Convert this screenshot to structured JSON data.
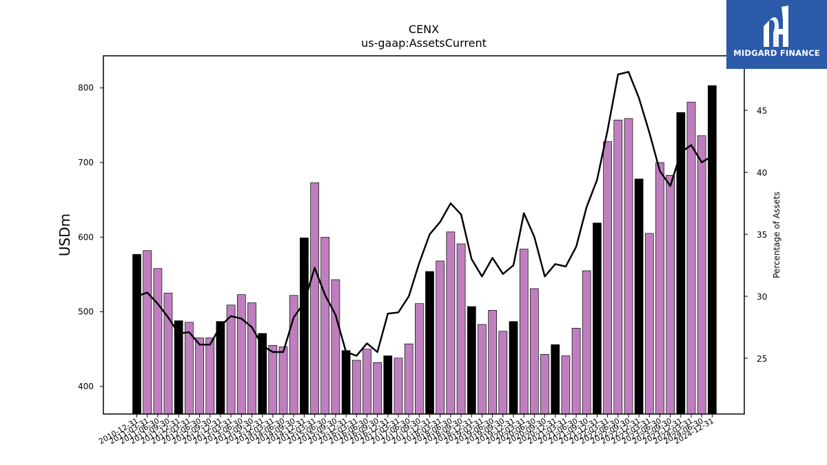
{
  "logo": {
    "text": "MIDGARD FINANCE",
    "bg_color": "#2b5aa9"
  },
  "chart_data": {
    "type": "bar",
    "title": "CENX",
    "subtitle": "us-gaap:AssetsCurrent",
    "ylabel": "USDm",
    "y2label": "Percentage of Assets",
    "ylim": [
      363,
      843
    ],
    "y2lim": [
      20.5,
      49.4
    ],
    "yticks": [
      400,
      500,
      600,
      700,
      800
    ],
    "y2ticks": [
      25,
      30,
      35,
      40,
      45
    ],
    "colors": {
      "annual": "#000000",
      "quarterly": "#bf7fbf",
      "line": "#000000"
    },
    "categories": [
      "2010-12-31",
      "2011-03-31",
      "2011-06-30",
      "2011-09-30",
      "2011-12-31",
      "2012-03-31",
      "2012-06-30",
      "2012-09-30",
      "2012-12-31",
      "2013-03-31",
      "2013-06-30",
      "2013-09-30",
      "2013-12-31",
      "2014-03-31",
      "2014-06-30",
      "2014-09-30",
      "2014-12-31",
      "2015-03-31",
      "2015-06-30",
      "2015-09-30",
      "2015-12-31",
      "2016-03-31",
      "2016-06-30",
      "2016-09-30",
      "2016-12-31",
      "2017-03-31",
      "2017-06-30",
      "2017-09-30",
      "2017-12-31",
      "2018-03-31",
      "2018-06-30",
      "2018-09-30",
      "2018-12-31",
      "2019-03-31",
      "2019-06-30",
      "2019-09-30",
      "2019-12-31",
      "2020-03-31",
      "2020-06-30",
      "2020-09-30",
      "2020-12-31",
      "2021-03-31",
      "2021-06-30",
      "2021-09-30",
      "2021-12-31",
      "2022-03-31",
      "2022-06-30",
      "2022-09-30",
      "2022-12-31",
      "2023-03-31",
      "2023-06-30",
      "2023-09-30",
      "2023-12-31",
      "2024-03-31",
      "2024-06-30",
      "2024-12-31"
    ],
    "bar_types": [
      "A",
      "Q",
      "Q",
      "Q",
      "A",
      "Q",
      "Q",
      "Q",
      "A",
      "Q",
      "Q",
      "Q",
      "A",
      "Q",
      "Q",
      "Q",
      "A",
      "Q",
      "Q",
      "Q",
      "A",
      "Q",
      "Q",
      "Q",
      "A",
      "Q",
      "Q",
      "Q",
      "A",
      "Q",
      "Q",
      "Q",
      "A",
      "Q",
      "Q",
      "Q",
      "A",
      "Q",
      "Q",
      "Q",
      "A",
      "Q",
      "Q",
      "Q",
      "A",
      "Q",
      "Q",
      "Q",
      "A",
      "Q",
      "Q",
      "Q",
      "A",
      "Q",
      "Q",
      "A"
    ],
    "series": [
      {
        "type": "bar",
        "values": [
          577,
          582,
          558,
          525,
          488,
          486,
          465,
          465,
          487,
          509,
          523,
          512,
          471,
          455,
          453,
          522,
          599,
          673,
          600,
          543,
          448,
          435,
          450,
          432,
          441,
          438,
          457,
          511,
          554,
          568,
          607,
          591,
          507,
          483,
          502,
          474,
          487,
          584,
          531,
          443,
          456,
          441,
          478,
          555,
          619,
          728,
          757,
          759,
          678,
          605,
          700,
          683,
          767,
          781,
          736,
          803
        ]
      },
      {
        "type": "line",
        "values": [
          30.0,
          30.3,
          29.4,
          28.3,
          27.0,
          27.1,
          26.1,
          26.1,
          27.6,
          28.4,
          28.2,
          27.5,
          26.0,
          25.5,
          25.5,
          28.3,
          29.5,
          32.3,
          30.1,
          28.5,
          25.5,
          25.2,
          26.2,
          25.5,
          28.6,
          28.7,
          30.0,
          32.7,
          35.0,
          36.0,
          37.5,
          36.6,
          33.0,
          31.6,
          33.1,
          31.8,
          32.5,
          36.7,
          34.8,
          31.6,
          32.6,
          32.4,
          34.0,
          37.2,
          39.4,
          43.4,
          47.9,
          48.1,
          46.0,
          43.2,
          40.1,
          38.9,
          41.6,
          42.2,
          40.8,
          41.3
        ]
      }
    ]
  }
}
